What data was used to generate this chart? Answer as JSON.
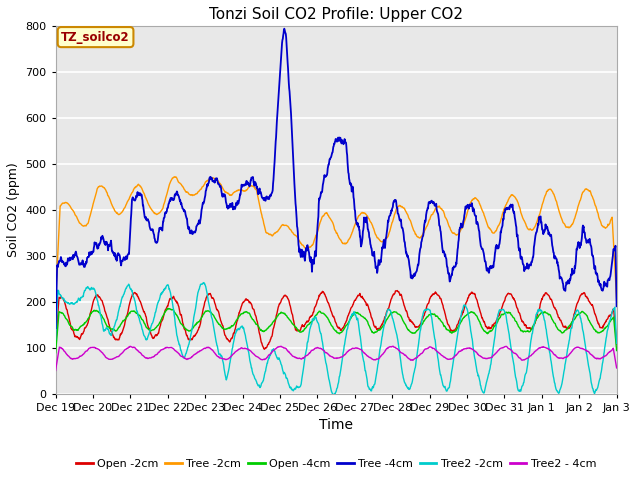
{
  "title": "Tonzi Soil CO2 Profile: Upper CO2",
  "xlabel": "Time",
  "ylabel": "Soil CO2 (ppm)",
  "ylim": [
    0,
    800
  ],
  "yticks": [
    0,
    100,
    200,
    300,
    400,
    500,
    600,
    700,
    800
  ],
  "legend_label": "TZ_soilco2",
  "legend_box_color": "#ffffcc",
  "legend_box_edge": "#cc8800",
  "legend_text_color": "#990000",
  "fig_bg": "#ffffff",
  "plot_bg": "#e8e8e8",
  "series": {
    "Open_2cm": {
      "color": "#dd0000",
      "label": "Open -2cm"
    },
    "Tree_2cm": {
      "color": "#ff9900",
      "label": "Tree -2cm"
    },
    "Open_4cm": {
      "color": "#00cc00",
      "label": "Open -4cm"
    },
    "Tree_4cm": {
      "color": "#0000cc",
      "label": "Tree -4cm"
    },
    "Tree2_2cm": {
      "color": "#00cccc",
      "label": "Tree2 -2cm"
    },
    "Tree2_4cm": {
      "color": "#cc00cc",
      "label": "Tree2 - 4cm"
    }
  },
  "xtick_labels": [
    "Dec 19",
    "Dec 20",
    "Dec 21",
    "Dec 22",
    "Dec 23",
    "Dec 24",
    "Dec 25",
    "Dec 26",
    "Dec 27",
    "Dec 28",
    "Dec 29",
    "Dec 30",
    "Dec 31",
    "Jan 1",
    "Jan 2",
    "Jan 3"
  ],
  "grid_color": "#ffffff",
  "line_width": 1.0
}
